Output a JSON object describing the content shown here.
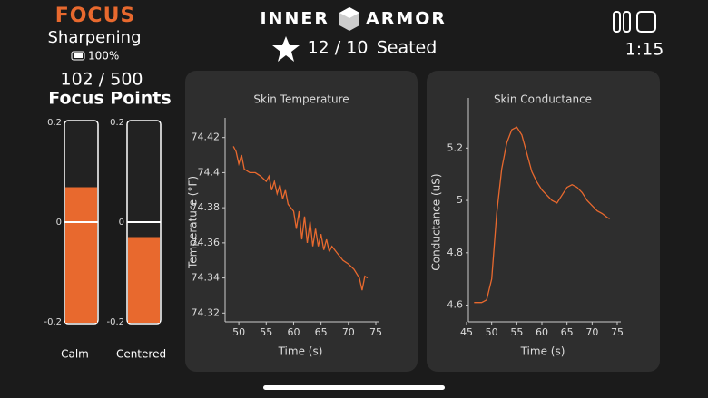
{
  "header": {
    "app": "FOCUS",
    "mode": "Sharpening",
    "battery": "100%",
    "points": "102 / 500",
    "points_label": "Focus Points",
    "brand_left": "INNER",
    "brand_right": "ARMOR",
    "rating": "12 / 10",
    "posture": "Seated",
    "timer": "1:15"
  },
  "gauges": {
    "ylim": [
      -0.2,
      0.2
    ],
    "yticks": [
      0.2,
      0,
      -0.2
    ],
    "color": "#e8692e",
    "items": [
      {
        "label": "Calm",
        "value": 0.07
      },
      {
        "label": "Centered",
        "value": -0.03
      }
    ]
  },
  "chart_data": [
    {
      "type": "line",
      "title": "Skin Temperature",
      "x_label": "Time (s)",
      "y_label": "Temperature (°F)",
      "color": "#e8692e",
      "xlim": [
        47.5,
        75
      ],
      "xticks": [
        50,
        55,
        60,
        65,
        70,
        75
      ],
      "ylim": [
        74.315,
        74.425
      ],
      "yticks": [
        74.32,
        74.34,
        74.36,
        74.38,
        74.4,
        74.42
      ],
      "x": [
        49,
        49.5,
        50,
        50.5,
        51,
        52,
        53,
        54,
        55,
        55.5,
        56,
        56.5,
        57,
        57.5,
        58,
        58.5,
        59,
        60,
        60.5,
        61,
        61.5,
        62,
        62.5,
        63,
        63.5,
        64,
        64.5,
        65,
        65.5,
        66,
        66.5,
        67,
        68,
        69,
        70,
        71,
        72,
        72.5,
        73,
        73.5
      ],
      "values": [
        74.415,
        74.412,
        74.405,
        74.41,
        74.402,
        74.4,
        74.4,
        74.398,
        74.395,
        74.398,
        74.39,
        74.395,
        74.388,
        74.393,
        74.385,
        74.39,
        74.382,
        74.378,
        74.368,
        74.378,
        74.362,
        74.375,
        74.36,
        74.372,
        74.358,
        74.368,
        74.358,
        74.365,
        74.356,
        74.362,
        74.355,
        74.358,
        74.354,
        74.35,
        74.348,
        74.345,
        74.34,
        74.333,
        74.341,
        74.34
      ]
    },
    {
      "type": "line",
      "title": "Skin Conductance",
      "x_label": "Time (s)",
      "y_label": "Conductance (uS)",
      "color": "#e8692e",
      "xlim": [
        45,
        75
      ],
      "xticks": [
        45,
        50,
        55,
        60,
        65,
        70,
        75
      ],
      "ylim": [
        4.55,
        5.35
      ],
      "yticks": [
        4.6,
        4.8,
        5,
        5.2
      ],
      "x": [
        46.5,
        48,
        49,
        50,
        51,
        52,
        53,
        54,
        55,
        56,
        57,
        58,
        59,
        60,
        61,
        62,
        63,
        64,
        65,
        66,
        67,
        68,
        69,
        70,
        71,
        72,
        73,
        73.5
      ],
      "values": [
        4.61,
        4.61,
        4.62,
        4.7,
        4.95,
        5.12,
        5.22,
        5.27,
        5.28,
        5.25,
        5.18,
        5.11,
        5.07,
        5.04,
        5.02,
        5.0,
        4.99,
        5.02,
        5.05,
        5.06,
        5.05,
        5.03,
        5.0,
        4.98,
        4.96,
        4.95,
        4.935,
        4.93
      ]
    }
  ]
}
